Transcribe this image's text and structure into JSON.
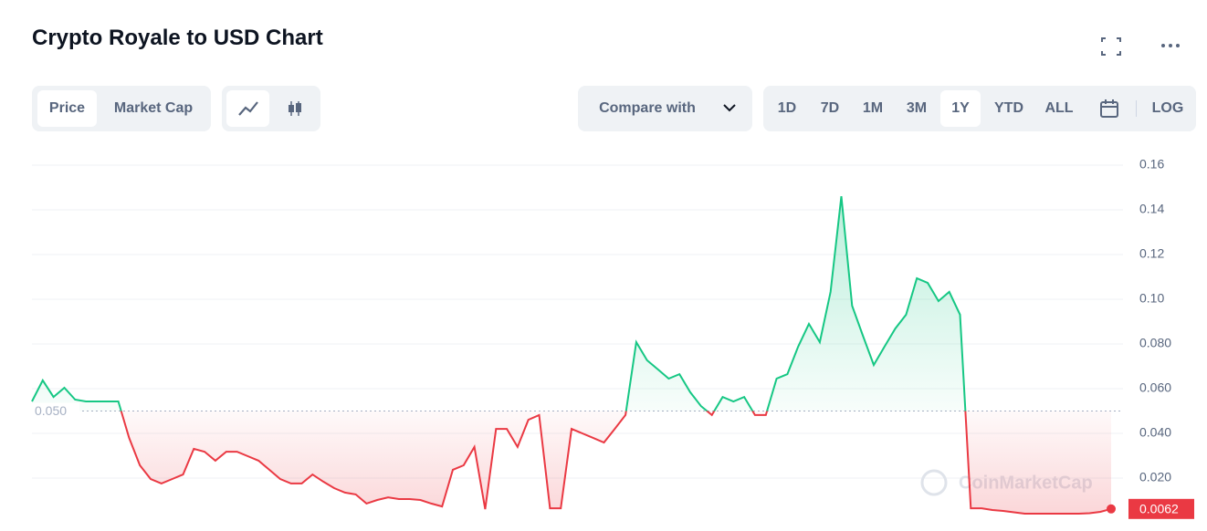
{
  "ui": {
    "tabs": [
      "Price",
      "Market Cap"
    ],
    "compare": "Compare with",
    "ranges": [
      "1D",
      "7D",
      "1M",
      "3M",
      "1Y",
      "YTD",
      "ALL"
    ],
    "selected_range": "1Y",
    "log": "LOG"
  },
  "chart_data": {
    "type": "line",
    "title": "Crypto Royale to USD Chart",
    "values": [
      0.0543,
      0.0637,
      0.0563,
      0.0604,
      0.0551,
      0.0543,
      0.0543,
      0.0543,
      0.0543,
      0.038,
      0.0257,
      0.0196,
      0.0176,
      0.0196,
      0.0216,
      0.0331,
      0.0318,
      0.0278,
      0.0318,
      0.0318,
      0.0298,
      0.0278,
      0.0237,
      0.0196,
      0.0176,
      0.0176,
      0.0216,
      0.0184,
      0.0155,
      0.0135,
      0.0127,
      0.0086,
      0.0102,
      0.0114,
      0.0106,
      0.0106,
      0.0102,
      0.0086,
      0.0073,
      0.0237,
      0.0257,
      0.0339,
      0.0061,
      0.042,
      0.042,
      0.0339,
      0.0461,
      0.0482,
      0.0065,
      0.0065,
      0.042,
      0.04,
      0.038,
      0.0359,
      0.042,
      0.0482,
      0.0808,
      0.0727,
      0.0686,
      0.0645,
      0.0665,
      0.0584,
      0.0522,
      0.0482,
      0.0563,
      0.0543,
      0.0563,
      0.0482,
      0.0482,
      0.0645,
      0.0665,
      0.0788,
      0.089,
      0.0808,
      0.1033,
      0.1461,
      0.0971,
      0.0837,
      0.0706,
      0.0788,
      0.0869,
      0.0931,
      0.1094,
      0.1073,
      0.0992,
      0.1033,
      0.0931,
      0.0065,
      0.0065,
      0.0057,
      0.0053,
      0.0047,
      0.0041,
      0.0041,
      0.0041,
      0.0041,
      0.0041,
      0.0041,
      0.0043,
      0.0049,
      0.0062
    ],
    "color_up": "#16c784",
    "color_down": "#ea3943",
    "baseline": {
      "value": 0.05,
      "label": "0.050"
    },
    "last_value": 0.0062,
    "ylim": [
      0,
      0.17
    ],
    "yticks": [
      {
        "value": 0.02,
        "label": "0.020"
      },
      {
        "value": 0.04,
        "label": "0.040"
      },
      {
        "value": 0.06,
        "label": "0.060"
      },
      {
        "value": 0.08,
        "label": "0.080"
      },
      {
        "value": 0.1,
        "label": "0.10"
      },
      0.12,
      0.14,
      0.16
    ],
    "grid": true,
    "watermark": "CoinMarketCap"
  }
}
